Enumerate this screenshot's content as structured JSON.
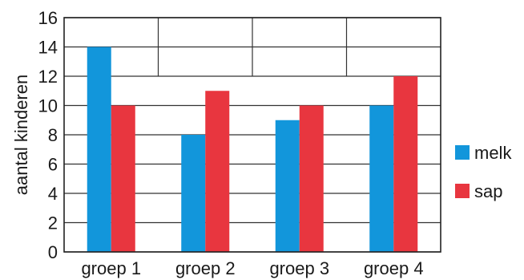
{
  "chart_data": {
    "type": "bar",
    "categories": [
      "groep 1",
      "groep 2",
      "groep 3",
      "groep 4"
    ],
    "series": [
      {
        "name": "melk",
        "values": [
          14,
          8,
          9,
          10
        ],
        "color": "#1296DB"
      },
      {
        "name": "sap",
        "values": [
          10,
          11,
          10,
          12
        ],
        "color": "#E8363F"
      }
    ],
    "title": "",
    "xlabel": "",
    "ylabel": "aantal kinderen",
    "ylim": [
      0,
      16
    ],
    "yticks": [
      "0",
      "2",
      "4",
      "6",
      "8",
      "10",
      "12",
      "14",
      "16"
    ],
    "grid": true,
    "legend_position": "right",
    "colors": {
      "grid": "#333333",
      "axis": "#222222",
      "text": "#1a1a1a"
    }
  }
}
